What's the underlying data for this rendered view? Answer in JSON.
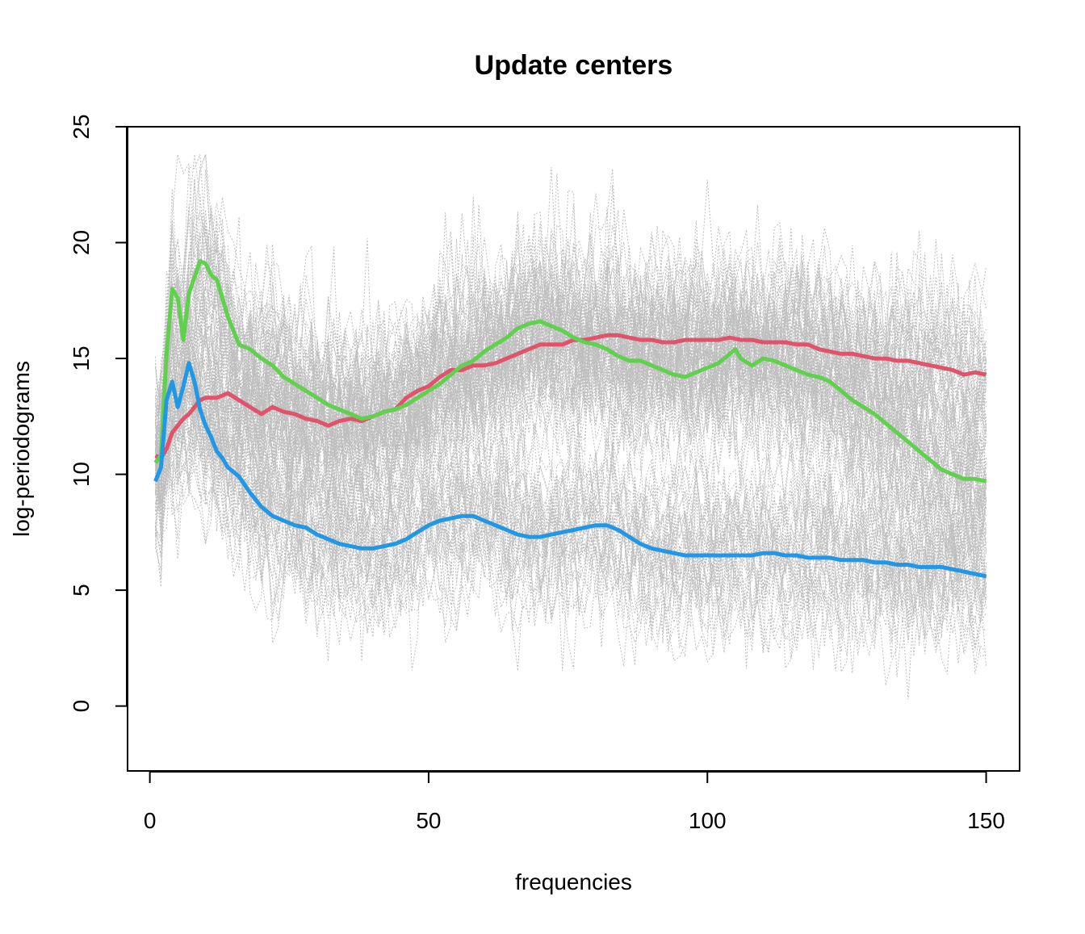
{
  "chart_data": {
    "type": "line",
    "title": "Update centers",
    "xlabel": "frequencies",
    "ylabel": "log-periodograms",
    "xlim": [
      1,
      150
    ],
    "ylim": [
      -2.8,
      25
    ],
    "x_ticks": [
      0,
      50,
      100,
      150
    ],
    "y_ticks": [
      0,
      5,
      10,
      15,
      20,
      25
    ],
    "grid": false,
    "background_series": {
      "description_color": "#bebebe",
      "line_style": "dotted"
    },
    "series": [
      {
        "color": "#df536b",
        "x": [
          1,
          2,
          3,
          4,
          5,
          6,
          7,
          8,
          9,
          10,
          12,
          14,
          16,
          18,
          20,
          22,
          24,
          26,
          28,
          30,
          32,
          34,
          36,
          38,
          40,
          42,
          44,
          46,
          48,
          50,
          52,
          54,
          56,
          58,
          60,
          62,
          64,
          66,
          68,
          70,
          72,
          74,
          76,
          78,
          80,
          82,
          84,
          86,
          88,
          90,
          92,
          94,
          96,
          98,
          100,
          102,
          104,
          106,
          108,
          110,
          112,
          114,
          116,
          118,
          120,
          122,
          124,
          126,
          128,
          130,
          132,
          134,
          136,
          138,
          140,
          142,
          144,
          146,
          148,
          150
        ],
        "values": [
          10.8,
          10.7,
          11.1,
          11.8,
          12.1,
          12.4,
          12.6,
          12.9,
          13.2,
          13.3,
          13.3,
          13.5,
          13.2,
          12.9,
          12.6,
          12.9,
          12.7,
          12.6,
          12.4,
          12.3,
          12.1,
          12.3,
          12.4,
          12.3,
          12.5,
          12.7,
          12.8,
          13.3,
          13.6,
          13.8,
          14.2,
          14.5,
          14.5,
          14.7,
          14.7,
          14.8,
          15.0,
          15.2,
          15.4,
          15.6,
          15.6,
          15.6,
          15.8,
          15.8,
          15.9,
          16.0,
          16.0,
          15.9,
          15.8,
          15.8,
          15.7,
          15.7,
          15.8,
          15.8,
          15.8,
          15.8,
          15.9,
          15.8,
          15.8,
          15.7,
          15.7,
          15.7,
          15.6,
          15.6,
          15.4,
          15.3,
          15.2,
          15.2,
          15.1,
          15.0,
          15.0,
          14.9,
          14.9,
          14.8,
          14.7,
          14.6,
          14.5,
          14.3,
          14.4,
          14.3
        ]
      },
      {
        "color": "#61d04f",
        "x": [
          1,
          2,
          3,
          4,
          5,
          6,
          7,
          8,
          9,
          10,
          11,
          12,
          13,
          14,
          16,
          18,
          20,
          22,
          24,
          26,
          28,
          30,
          32,
          34,
          36,
          38,
          40,
          42,
          44,
          46,
          48,
          50,
          52,
          54,
          56,
          58,
          60,
          62,
          64,
          66,
          68,
          70,
          72,
          74,
          76,
          78,
          80,
          82,
          84,
          86,
          88,
          90,
          92,
          94,
          96,
          98,
          100,
          102,
          104,
          105,
          106,
          108,
          110,
          112,
          114,
          116,
          118,
          120,
          122,
          124,
          126,
          128,
          130,
          132,
          134,
          136,
          138,
          140,
          142,
          144,
          146,
          148,
          150
        ],
        "values": [
          10.5,
          10.8,
          15.2,
          18.0,
          17.6,
          15.8,
          17.8,
          18.5,
          19.2,
          19.1,
          18.6,
          18.4,
          17.6,
          16.8,
          15.6,
          15.4,
          15.0,
          14.7,
          14.2,
          13.9,
          13.6,
          13.3,
          13.0,
          12.8,
          12.6,
          12.4,
          12.5,
          12.7,
          12.8,
          13.0,
          13.3,
          13.6,
          13.9,
          14.3,
          14.7,
          14.9,
          15.3,
          15.6,
          15.9,
          16.3,
          16.5,
          16.6,
          16.4,
          16.2,
          15.9,
          15.7,
          15.6,
          15.4,
          15.1,
          14.9,
          14.9,
          14.7,
          14.5,
          14.3,
          14.2,
          14.4,
          14.6,
          14.8,
          15.2,
          15.4,
          15.0,
          14.7,
          15.0,
          14.9,
          14.7,
          14.5,
          14.3,
          14.2,
          14.0,
          13.6,
          13.2,
          12.9,
          12.6,
          12.2,
          11.8,
          11.4,
          11.0,
          10.6,
          10.2,
          10.0,
          9.8,
          9.8,
          9.7
        ]
      },
      {
        "color": "#2297e6",
        "x": [
          1,
          2,
          3,
          4,
          5,
          6,
          7,
          8,
          9,
          10,
          11,
          12,
          13,
          14,
          16,
          18,
          20,
          22,
          24,
          26,
          28,
          30,
          32,
          34,
          36,
          38,
          40,
          42,
          44,
          46,
          48,
          50,
          52,
          54,
          56,
          58,
          60,
          62,
          64,
          66,
          68,
          70,
          72,
          74,
          76,
          78,
          80,
          82,
          84,
          86,
          88,
          90,
          92,
          94,
          96,
          98,
          100,
          102,
          104,
          106,
          108,
          110,
          112,
          114,
          116,
          118,
          120,
          122,
          124,
          126,
          128,
          130,
          132,
          134,
          136,
          138,
          140,
          142,
          144,
          146,
          148,
          150
        ],
        "values": [
          9.7,
          10.3,
          13.2,
          14.0,
          12.9,
          13.8,
          14.8,
          14.0,
          12.8,
          12.1,
          11.6,
          11.0,
          10.7,
          10.3,
          9.9,
          9.2,
          8.6,
          8.2,
          8.0,
          7.8,
          7.7,
          7.4,
          7.2,
          7.0,
          6.9,
          6.8,
          6.8,
          6.9,
          7.0,
          7.2,
          7.5,
          7.8,
          8.0,
          8.1,
          8.2,
          8.2,
          8.0,
          7.8,
          7.6,
          7.4,
          7.3,
          7.3,
          7.4,
          7.5,
          7.6,
          7.7,
          7.8,
          7.8,
          7.6,
          7.3,
          7.0,
          6.8,
          6.7,
          6.6,
          6.5,
          6.5,
          6.5,
          6.5,
          6.5,
          6.5,
          6.5,
          6.6,
          6.6,
          6.5,
          6.5,
          6.4,
          6.4,
          6.4,
          6.3,
          6.3,
          6.3,
          6.2,
          6.2,
          6.1,
          6.1,
          6.0,
          6.0,
          6.0,
          5.9,
          5.8,
          5.7,
          5.6
        ]
      }
    ]
  }
}
